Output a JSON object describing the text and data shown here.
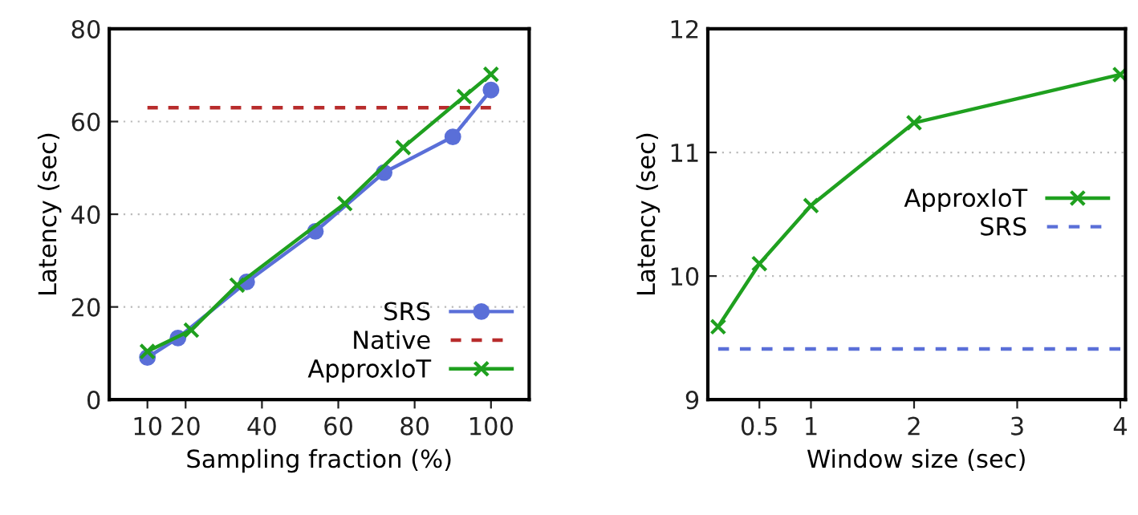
{
  "chart_data": [
    {
      "type": "line",
      "xlabel": "Sampling fraction (%)",
      "ylabel": "Latency (sec)",
      "xlim": [
        0,
        110
      ],
      "ylim": [
        0,
        80
      ],
      "xticks": [
        10,
        20,
        40,
        60,
        80,
        100
      ],
      "yticks": [
        0,
        20,
        40,
        60,
        80
      ],
      "grid": "y",
      "legend": "bottom right",
      "series": [
        {
          "name": "SRS",
          "color": "#5a6fd8",
          "marker": "circle",
          "line_style": "solid",
          "x": [
            10,
            18,
            36,
            54,
            72,
            90,
            100
          ],
          "values": [
            9.1,
            13.3,
            25.4,
            36.3,
            49,
            56.7,
            66.8
          ]
        },
        {
          "name": "Native",
          "color": "#b82c2c",
          "marker": "none",
          "line_style": "dashed",
          "x": [
            10,
            100
          ],
          "values": [
            63,
            63
          ]
        },
        {
          "name": "ApproxIoT",
          "color": "#1fa01f",
          "marker": "cross",
          "line_style": "solid",
          "x": [
            10,
            21.5,
            33.5,
            61.7,
            77,
            93,
            100
          ],
          "values": [
            10.4,
            15,
            24.7,
            42.3,
            54.4,
            65.4,
            70.2
          ]
        }
      ]
    },
    {
      "type": "line",
      "xlabel": "Window size (sec)",
      "ylabel": "Latency (sec)",
      "xlim": [
        0,
        4.05
      ],
      "ylim": [
        9,
        12
      ],
      "xticks": [
        0.5,
        1,
        2,
        3,
        4
      ],
      "yticks": [
        9,
        10,
        11,
        12
      ],
      "grid": "y",
      "legend": "right",
      "series": [
        {
          "name": "ApproxIoT",
          "color": "#1fa01f",
          "marker": "cross",
          "line_style": "solid",
          "x": [
            0.1,
            0.5,
            1,
            2,
            4
          ],
          "values": [
            9.59,
            10.1,
            10.57,
            11.24,
            11.63
          ]
        },
        {
          "name": "SRS",
          "color": "#5a6fd8",
          "marker": "none",
          "line_style": "dashed",
          "x": [
            0.1,
            4
          ],
          "values": [
            9.41,
            9.41
          ]
        }
      ]
    }
  ]
}
